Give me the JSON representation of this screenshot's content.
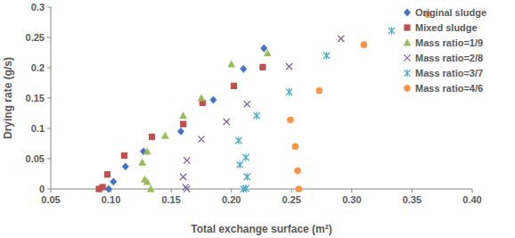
{
  "chart_data": {
    "type": "scatter",
    "x_label": "Total exchange surface (m²)",
    "y_label": "Drying rate (g/s)",
    "xlim": [
      0.05,
      0.4
    ],
    "ylim": [
      0,
      0.3
    ],
    "xticks": [
      0.05,
      {
        "value": 0.1,
        "label": "0.10"
      },
      0.15,
      {
        "value": 0.2,
        "label": "0.20"
      },
      0.25,
      {
        "value": 0.3,
        "label": "0.30"
      },
      0.35,
      {
        "value": 0.4,
        "label": "0.40"
      }
    ],
    "yticks": [
      0,
      0.05,
      0.1,
      0.15,
      0.2,
      0.25,
      0.3
    ],
    "grid": false,
    "legend": "top-right",
    "series": [
      {
        "name": "Original sludge",
        "color": "#4472c4",
        "marker": "diamond",
        "x": [
          0.098,
          0.102,
          0.112,
          0.127,
          0.158,
          0.185,
          0.21,
          0.227
        ],
        "values": [
          0,
          0.012,
          0.037,
          0.062,
          0.095,
          0.147,
          0.198,
          0.232
        ]
      },
      {
        "name": "Mixed sludge",
        "color": "#c0504d",
        "marker": "square",
        "x": [
          0.09,
          0.093,
          0.097,
          0.111,
          0.134,
          0.16,
          0.176,
          0.202,
          0.226
        ],
        "values": [
          0,
          0.003,
          0.024,
          0.055,
          0.086,
          0.107,
          0.142,
          0.17,
          0.201
        ]
      },
      {
        "name": "Mass ratio=1/9",
        "color": "#9bbb59",
        "marker": "triangle",
        "x": [
          0.133,
          0.13,
          0.128,
          0.126,
          0.13,
          0.145,
          0.16,
          0.175,
          0.2,
          0.23
        ],
        "values": [
          0,
          0.012,
          0.016,
          0.044,
          0.062,
          0.088,
          0.121,
          0.15,
          0.206,
          0.224
        ]
      },
      {
        "name": "Mass ratio=2/8",
        "color": "#8064a2",
        "marker": "x",
        "x": [
          0.163,
          0.162,
          0.16,
          0.163,
          0.175,
          0.196,
          0.213,
          0.248,
          0.291
        ],
        "values": [
          0,
          0.003,
          0.02,
          0.047,
          0.082,
          0.111,
          0.14,
          0.202,
          0.248
        ]
      },
      {
        "name": "Mass ratio=3/7",
        "color": "#4bacc6",
        "marker": "star",
        "x": [
          0.21,
          0.212,
          0.213,
          0.212,
          0.207,
          0.206,
          0.221,
          0.248,
          0.279,
          0.333
        ],
        "values": [
          0,
          0.001,
          0.02,
          0.052,
          0.04,
          0.08,
          0.121,
          0.16,
          0.22,
          0.261
        ]
      },
      {
        "name": "Mass ratio=4/6",
        "color": "#f79646",
        "marker": "circle",
        "x": [
          0.256,
          0.255,
          0.253,
          0.249,
          0.273,
          0.31,
          0.363
        ],
        "values": [
          0,
          0.03,
          0.07,
          0.114,
          0.162,
          0.238,
          0.288
        ]
      }
    ]
  }
}
